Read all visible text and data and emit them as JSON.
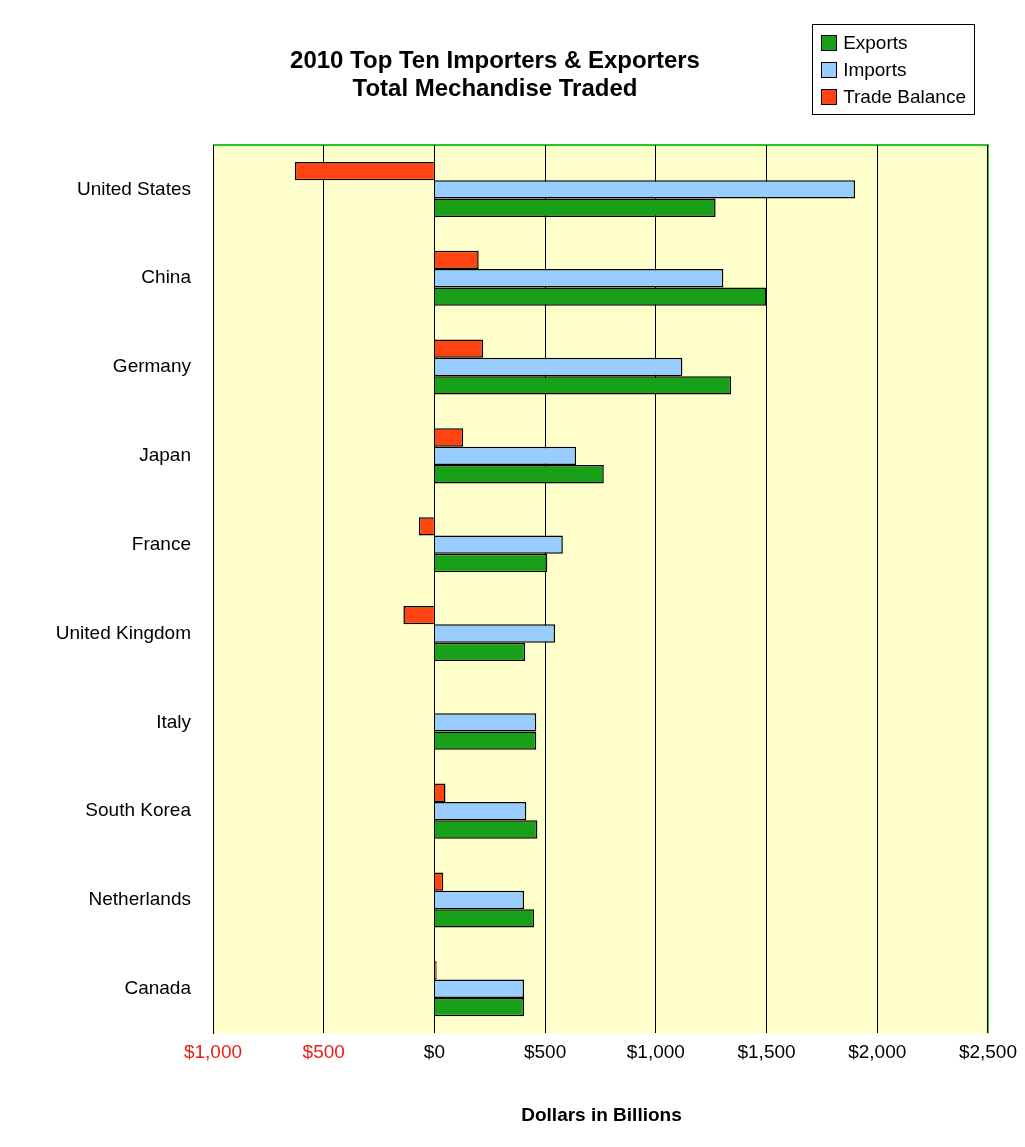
{
  "chart_data": {
    "type": "bar",
    "orientation": "horizontal",
    "title": "2010 Top Ten Importers & Exporters\nTotal Mechandise Traded",
    "xlabel": "Dollars in Billions",
    "categories": [
      "United States",
      "China",
      "Germany",
      "Japan",
      "France",
      "United Kingdom",
      "Italy",
      "South Korea",
      "Netherlands",
      "Canada"
    ],
    "series": [
      {
        "name": "Exports",
        "color": "#18a018",
        "values": [
          1270,
          1500,
          1340,
          765,
          510,
          410,
          460,
          465,
          450,
          405
        ]
      },
      {
        "name": "Imports",
        "color": "#99ccff",
        "values": [
          1900,
          1305,
          1120,
          640,
          580,
          545,
          460,
          415,
          405,
          405
        ]
      },
      {
        "name": "Trade Balance",
        "color": "#ff4411",
        "values": [
          -630,
          200,
          220,
          130,
          -70,
          -140,
          0,
          50,
          40,
          10
        ]
      }
    ],
    "xlim": [
      -1000,
      2500
    ],
    "xticks": [
      {
        "value": -1000,
        "label": "$1,000"
      },
      {
        "value": -500,
        "label": "$500"
      },
      {
        "value": 0,
        "label": "$0"
      },
      {
        "value": 500,
        "label": "$500"
      },
      {
        "value": 1000,
        "label": "$1,000"
      },
      {
        "value": 1500,
        "label": "$1,500"
      },
      {
        "value": 2000,
        "label": "$2,000"
      },
      {
        "value": 2500,
        "label": "$2,500"
      }
    ],
    "grid": "x",
    "legend": "top right"
  }
}
